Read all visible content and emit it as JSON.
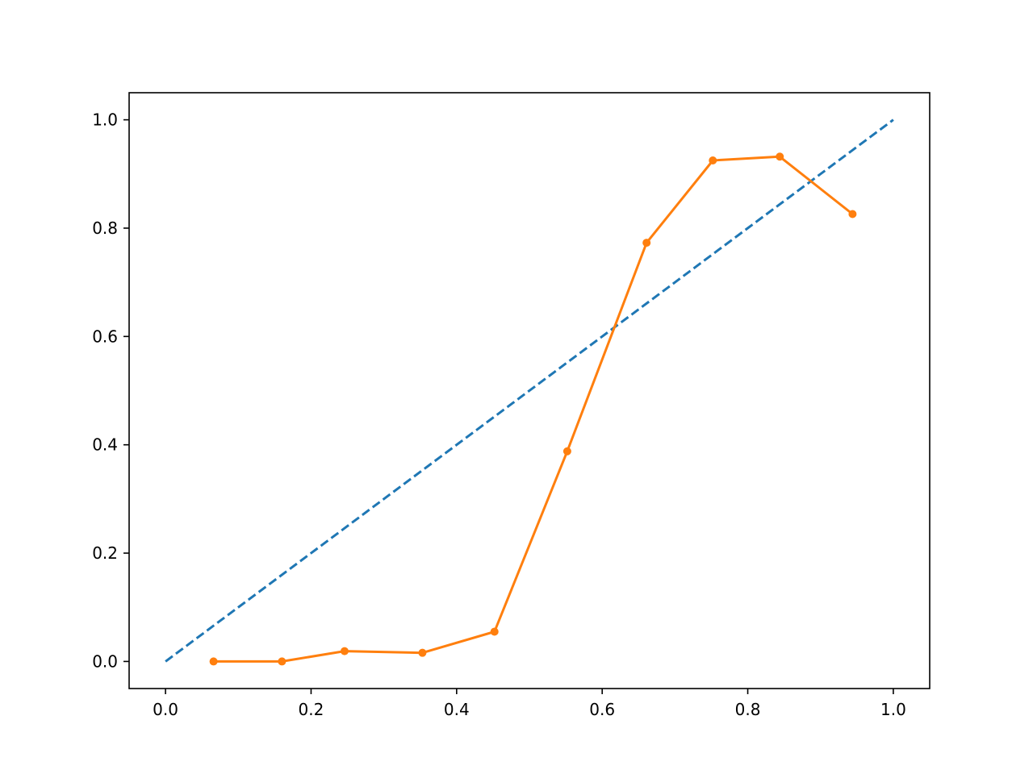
{
  "chart_data": {
    "type": "line",
    "title": "",
    "xlabel": "",
    "ylabel": "",
    "xlim": [
      -0.05,
      1.05
    ],
    "ylim": [
      -0.05,
      1.05
    ],
    "grid": false,
    "x_ticks": [
      0.0,
      0.2,
      0.4,
      0.6,
      0.8,
      1.0
    ],
    "x_tick_labels": [
      "0.0",
      "0.2",
      "0.4",
      "0.6",
      "0.8",
      "1.0"
    ],
    "y_ticks": [
      0.0,
      0.2,
      0.4,
      0.6,
      0.8,
      1.0
    ],
    "y_tick_labels": [
      "0.0",
      "0.2",
      "0.4",
      "0.6",
      "0.8",
      "1.0"
    ],
    "series": [
      {
        "style": "dashed",
        "color": "#1f77b4",
        "markers": false,
        "x": [
          0.0,
          1.0
        ],
        "y": [
          0.0,
          1.0
        ]
      },
      {
        "style": "solid",
        "color": "#ff7f0e",
        "markers": true,
        "x": [
          0.066,
          0.16,
          0.246,
          0.353,
          0.452,
          0.552,
          0.661,
          0.752,
          0.844,
          0.944
        ],
        "y": [
          0.0,
          0.0,
          0.019,
          0.016,
          0.055,
          0.388,
          0.773,
          0.925,
          0.932,
          0.826
        ]
      }
    ]
  }
}
